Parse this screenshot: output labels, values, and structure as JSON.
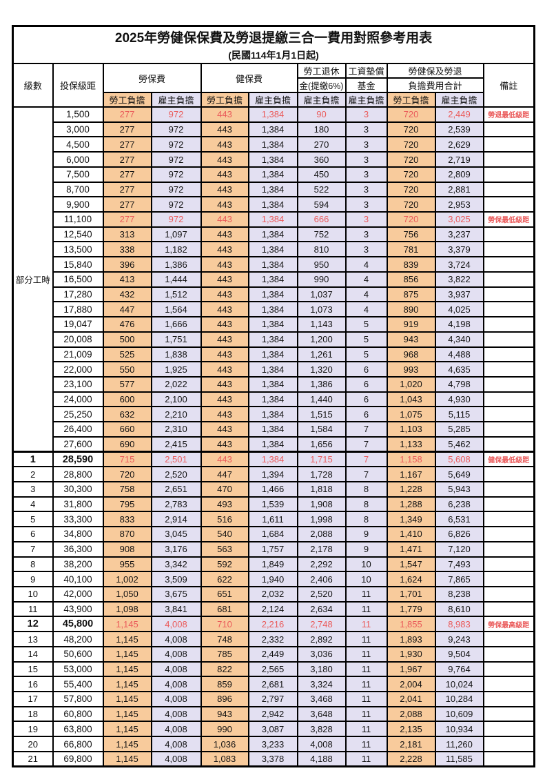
{
  "title": "2025年勞健保保費及勞退提繳三合一費用對照參考用表",
  "subtitle": "(民國114年1月1日起)",
  "header": {
    "level": "級數",
    "bracket": "投保級距",
    "labor_insurance": "勞保費",
    "health_insurance": "健保費",
    "pension_line1": "勞工退休",
    "pension_line2": "金(提繳6%)",
    "wage_fund_line1": "工資墊償",
    "wage_fund_line2": "基金",
    "total_line1": "勞健保及勞退",
    "total_line2": "負擔費用合計",
    "employee": "勞工負擔",
    "employer": "雇主負擔",
    "remark": "備註"
  },
  "part_time_label": "部分工時",
  "part_time_rowspan": 23,
  "colors": {
    "employee_bg": "#F8CB9C",
    "employer_bg": "#E3E0F2",
    "highlight_red": "#EA5A5A",
    "border": "#000000"
  },
  "rows": [
    {
      "level": null,
      "bracket": "1,500",
      "values": [
        "277",
        "972",
        "443",
        "1,384",
        "90",
        "3",
        "720",
        "2,449"
      ],
      "remark": "勞退最低級距",
      "red": true,
      "bold": false
    },
    {
      "level": null,
      "bracket": "3,000",
      "values": [
        "277",
        "972",
        "443",
        "1,384",
        "180",
        "3",
        "720",
        "2,539"
      ],
      "remark": "",
      "red": false,
      "bold": false
    },
    {
      "level": null,
      "bracket": "4,500",
      "values": [
        "277",
        "972",
        "443",
        "1,384",
        "270",
        "3",
        "720",
        "2,629"
      ],
      "remark": "",
      "red": false,
      "bold": false
    },
    {
      "level": null,
      "bracket": "6,000",
      "values": [
        "277",
        "972",
        "443",
        "1,384",
        "360",
        "3",
        "720",
        "2,719"
      ],
      "remark": "",
      "red": false,
      "bold": false
    },
    {
      "level": null,
      "bracket": "7,500",
      "values": [
        "277",
        "972",
        "443",
        "1,384",
        "450",
        "3",
        "720",
        "2,809"
      ],
      "remark": "",
      "red": false,
      "bold": false
    },
    {
      "level": null,
      "bracket": "8,700",
      "values": [
        "277",
        "972",
        "443",
        "1,384",
        "522",
        "3",
        "720",
        "2,881"
      ],
      "remark": "",
      "red": false,
      "bold": false
    },
    {
      "level": null,
      "bracket": "9,900",
      "values": [
        "277",
        "972",
        "443",
        "1,384",
        "594",
        "3",
        "720",
        "2,953"
      ],
      "remark": "",
      "red": false,
      "bold": false
    },
    {
      "level": null,
      "bracket": "11,100",
      "values": [
        "277",
        "972",
        "443",
        "1,384",
        "666",
        "3",
        "720",
        "3,025"
      ],
      "remark": "勞保最低級距",
      "red": true,
      "bold": false
    },
    {
      "level": null,
      "bracket": "12,540",
      "values": [
        "313",
        "1,097",
        "443",
        "1,384",
        "752",
        "3",
        "756",
        "3,237"
      ],
      "remark": "",
      "red": false,
      "bold": false
    },
    {
      "level": null,
      "bracket": "13,500",
      "values": [
        "338",
        "1,182",
        "443",
        "1,384",
        "810",
        "3",
        "781",
        "3,379"
      ],
      "remark": "",
      "red": false,
      "bold": false
    },
    {
      "level": null,
      "bracket": "15,840",
      "values": [
        "396",
        "1,386",
        "443",
        "1,384",
        "950",
        "4",
        "839",
        "3,724"
      ],
      "remark": "",
      "red": false,
      "bold": false
    },
    {
      "level": null,
      "bracket": "16,500",
      "values": [
        "413",
        "1,444",
        "443",
        "1,384",
        "990",
        "4",
        "856",
        "3,822"
      ],
      "remark": "",
      "red": false,
      "bold": false
    },
    {
      "level": null,
      "bracket": "17,280",
      "values": [
        "432",
        "1,512",
        "443",
        "1,384",
        "1,037",
        "4",
        "875",
        "3,937"
      ],
      "remark": "",
      "red": false,
      "bold": false
    },
    {
      "level": null,
      "bracket": "17,880",
      "values": [
        "447",
        "1,564",
        "443",
        "1,384",
        "1,073",
        "4",
        "890",
        "4,025"
      ],
      "remark": "",
      "red": false,
      "bold": false
    },
    {
      "level": null,
      "bracket": "19,047",
      "values": [
        "476",
        "1,666",
        "443",
        "1,384",
        "1,143",
        "5",
        "919",
        "4,198"
      ],
      "remark": "",
      "red": false,
      "bold": false
    },
    {
      "level": null,
      "bracket": "20,008",
      "values": [
        "500",
        "1,751",
        "443",
        "1,384",
        "1,200",
        "5",
        "943",
        "4,340"
      ],
      "remark": "",
      "red": false,
      "bold": false
    },
    {
      "level": null,
      "bracket": "21,009",
      "values": [
        "525",
        "1,838",
        "443",
        "1,384",
        "1,261",
        "5",
        "968",
        "4,488"
      ],
      "remark": "",
      "red": false,
      "bold": false
    },
    {
      "level": null,
      "bracket": "22,000",
      "values": [
        "550",
        "1,925",
        "443",
        "1,384",
        "1,320",
        "6",
        "993",
        "4,635"
      ],
      "remark": "",
      "red": false,
      "bold": false
    },
    {
      "level": null,
      "bracket": "23,100",
      "values": [
        "577",
        "2,022",
        "443",
        "1,384",
        "1,386",
        "6",
        "1,020",
        "4,798"
      ],
      "remark": "",
      "red": false,
      "bold": false
    },
    {
      "level": null,
      "bracket": "24,000",
      "values": [
        "600",
        "2,100",
        "443",
        "1,384",
        "1,440",
        "6",
        "1,043",
        "4,930"
      ],
      "remark": "",
      "red": false,
      "bold": false
    },
    {
      "level": null,
      "bracket": "25,250",
      "values": [
        "632",
        "2,210",
        "443",
        "1,384",
        "1,515",
        "6",
        "1,075",
        "5,115"
      ],
      "remark": "",
      "red": false,
      "bold": false
    },
    {
      "level": null,
      "bracket": "26,400",
      "values": [
        "660",
        "2,310",
        "443",
        "1,384",
        "1,584",
        "7",
        "1,103",
        "5,285"
      ],
      "remark": "",
      "red": false,
      "bold": false
    },
    {
      "level": null,
      "bracket": "27,600",
      "values": [
        "690",
        "2,415",
        "443",
        "1,384",
        "1,656",
        "7",
        "1,133",
        "5,462"
      ],
      "remark": "",
      "red": false,
      "bold": false
    },
    {
      "level": "1",
      "bracket": "28,590",
      "values": [
        "715",
        "2,501",
        "443",
        "1,384",
        "1,715",
        "7",
        "1,158",
        "5,608"
      ],
      "remark": "健保最低級距",
      "red": true,
      "bold": true
    },
    {
      "level": "2",
      "bracket": "28,800",
      "values": [
        "720",
        "2,520",
        "447",
        "1,394",
        "1,728",
        "7",
        "1,167",
        "5,649"
      ],
      "remark": "",
      "red": false,
      "bold": false
    },
    {
      "level": "3",
      "bracket": "30,300",
      "values": [
        "758",
        "2,651",
        "470",
        "1,466",
        "1,818",
        "8",
        "1,228",
        "5,943"
      ],
      "remark": "",
      "red": false,
      "bold": false
    },
    {
      "level": "4",
      "bracket": "31,800",
      "values": [
        "795",
        "2,783",
        "493",
        "1,539",
        "1,908",
        "8",
        "1,288",
        "6,238"
      ],
      "remark": "",
      "red": false,
      "bold": false
    },
    {
      "level": "5",
      "bracket": "33,300",
      "values": [
        "833",
        "2,914",
        "516",
        "1,611",
        "1,998",
        "8",
        "1,349",
        "6,531"
      ],
      "remark": "",
      "red": false,
      "bold": false
    },
    {
      "level": "6",
      "bracket": "34,800",
      "values": [
        "870",
        "3,045",
        "540",
        "1,684",
        "2,088",
        "9",
        "1,410",
        "6,826"
      ],
      "remark": "",
      "red": false,
      "bold": false
    },
    {
      "level": "7",
      "bracket": "36,300",
      "values": [
        "908",
        "3,176",
        "563",
        "1,757",
        "2,178",
        "9",
        "1,471",
        "7,120"
      ],
      "remark": "",
      "red": false,
      "bold": false
    },
    {
      "level": "8",
      "bracket": "38,200",
      "values": [
        "955",
        "3,342",
        "592",
        "1,849",
        "2,292",
        "10",
        "1,547",
        "7,493"
      ],
      "remark": "",
      "red": false,
      "bold": false
    },
    {
      "level": "9",
      "bracket": "40,100",
      "values": [
        "1,002",
        "3,509",
        "622",
        "1,940",
        "2,406",
        "10",
        "1,624",
        "7,865"
      ],
      "remark": "",
      "red": false,
      "bold": false
    },
    {
      "level": "10",
      "bracket": "42,000",
      "values": [
        "1,050",
        "3,675",
        "651",
        "2,032",
        "2,520",
        "11",
        "1,701",
        "8,238"
      ],
      "remark": "",
      "red": false,
      "bold": false
    },
    {
      "level": "11",
      "bracket": "43,900",
      "values": [
        "1,098",
        "3,841",
        "681",
        "2,124",
        "2,634",
        "11",
        "1,779",
        "8,610"
      ],
      "remark": "",
      "red": false,
      "bold": false
    },
    {
      "level": "12",
      "bracket": "45,800",
      "values": [
        "1,145",
        "4,008",
        "710",
        "2,216",
        "2,748",
        "11",
        "1,855",
        "8,983"
      ],
      "remark": "勞保最高級距",
      "red": true,
      "bold": true
    },
    {
      "level": "13",
      "bracket": "48,200",
      "values": [
        "1,145",
        "4,008",
        "748",
        "2,332",
        "2,892",
        "11",
        "1,893",
        "9,243"
      ],
      "remark": "",
      "red": false,
      "bold": false
    },
    {
      "level": "14",
      "bracket": "50,600",
      "values": [
        "1,145",
        "4,008",
        "785",
        "2,449",
        "3,036",
        "11",
        "1,930",
        "9,504"
      ],
      "remark": "",
      "red": false,
      "bold": false
    },
    {
      "level": "15",
      "bracket": "53,000",
      "values": [
        "1,145",
        "4,008",
        "822",
        "2,565",
        "3,180",
        "11",
        "1,967",
        "9,764"
      ],
      "remark": "",
      "red": false,
      "bold": false
    },
    {
      "level": "16",
      "bracket": "55,400",
      "values": [
        "1,145",
        "4,008",
        "859",
        "2,681",
        "3,324",
        "11",
        "2,004",
        "10,024"
      ],
      "remark": "",
      "red": false,
      "bold": false
    },
    {
      "level": "17",
      "bracket": "57,800",
      "values": [
        "1,145",
        "4,008",
        "896",
        "2,797",
        "3,468",
        "11",
        "2,041",
        "10,284"
      ],
      "remark": "",
      "red": false,
      "bold": false
    },
    {
      "level": "18",
      "bracket": "60,800",
      "values": [
        "1,145",
        "4,008",
        "943",
        "2,942",
        "3,648",
        "11",
        "2,088",
        "10,609"
      ],
      "remark": "",
      "red": false,
      "bold": false
    },
    {
      "level": "19",
      "bracket": "63,800",
      "values": [
        "1,145",
        "4,008",
        "990",
        "3,087",
        "3,828",
        "11",
        "2,135",
        "10,934"
      ],
      "remark": "",
      "red": false,
      "bold": false
    },
    {
      "level": "20",
      "bracket": "66,800",
      "values": [
        "1,145",
        "4,008",
        "1,036",
        "3,233",
        "4,008",
        "11",
        "2,181",
        "11,260"
      ],
      "remark": "",
      "red": false,
      "bold": false
    },
    {
      "level": "21",
      "bracket": "69,800",
      "values": [
        "1,145",
        "4,008",
        "1,083",
        "3,378",
        "4,188",
        "11",
        "2,228",
        "11,585"
      ],
      "remark": "",
      "red": false,
      "bold": false
    }
  ]
}
